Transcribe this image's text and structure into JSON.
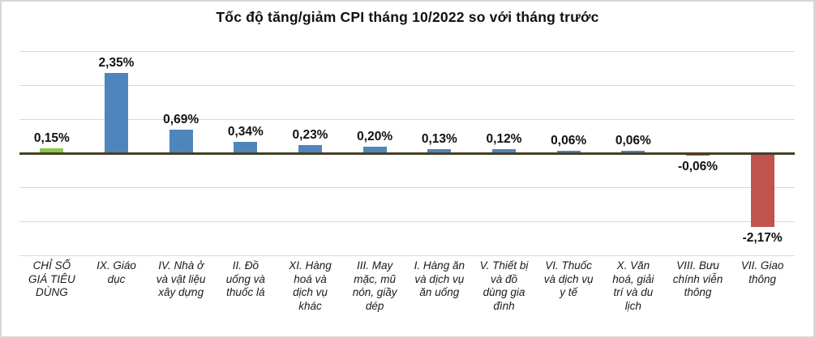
{
  "chart_data": {
    "type": "bar",
    "title": "Tốc độ tăng/giảm CPI tháng 10/2022 so với tháng trước",
    "categories": [
      "CHỈ SỐ\nGIÁ TIÊU\nDÙNG",
      "IX. Giáo\ndục",
      "IV. Nhà ở\nvà vật liệu\nxây dựng",
      "II. Đồ\nuống và\nthuốc lá",
      "XI. Hàng\nhoá và\ndịch vụ\nkhác",
      "III. May\nmặc, mũ\nnón, giầy\ndép",
      "I. Hàng ăn\nvà dịch vụ\năn uống",
      "V. Thiết bị\nvà đồ\ndùng gia\nđình",
      "VI. Thuốc\nvà dịch vụ\ny tế",
      "X. Văn\nhoá, giải\ntrí và du\nlịch",
      "VIII. Bưu\nchính viễn\nthông",
      "VII. Giao\nthông"
    ],
    "values": [
      0.15,
      2.35,
      0.69,
      0.34,
      0.23,
      0.2,
      0.13,
      0.12,
      0.06,
      0.06,
      -0.06,
      -2.17
    ],
    "value_labels": [
      "0,15%",
      "2,35%",
      "0,69%",
      "0,34%",
      "0,23%",
      "0,20%",
      "0,13%",
      "0,12%",
      "0,06%",
      "0,06%",
      "-0,06%",
      "-2,17%"
    ],
    "bar_colors": [
      "#8CC649",
      "#4F85BC",
      "#4F85BC",
      "#4F85BC",
      "#4F85BC",
      "#4F85BC",
      "#4F85BC",
      "#4F85BC",
      "#4F85BC",
      "#4F85BC",
      "#C1534F",
      "#C1534F"
    ],
    "xlabel": "",
    "ylabel": "",
    "ylim": [
      -3,
      3
    ],
    "gridline_interval": 1,
    "grid": true,
    "legend": "none",
    "y_axis_tick_labels_visible": false,
    "colors": {
      "cpi_highlight_bar": "#8CC649",
      "positive_bar": "#4F85BC",
      "negative_bar": "#C1534F",
      "axis_line": "#453F25",
      "gridline": "#D9D9D9",
      "chart_border": "#D6D6D6",
      "label_text": "#111111",
      "background": "#FFFFFF"
    }
  }
}
